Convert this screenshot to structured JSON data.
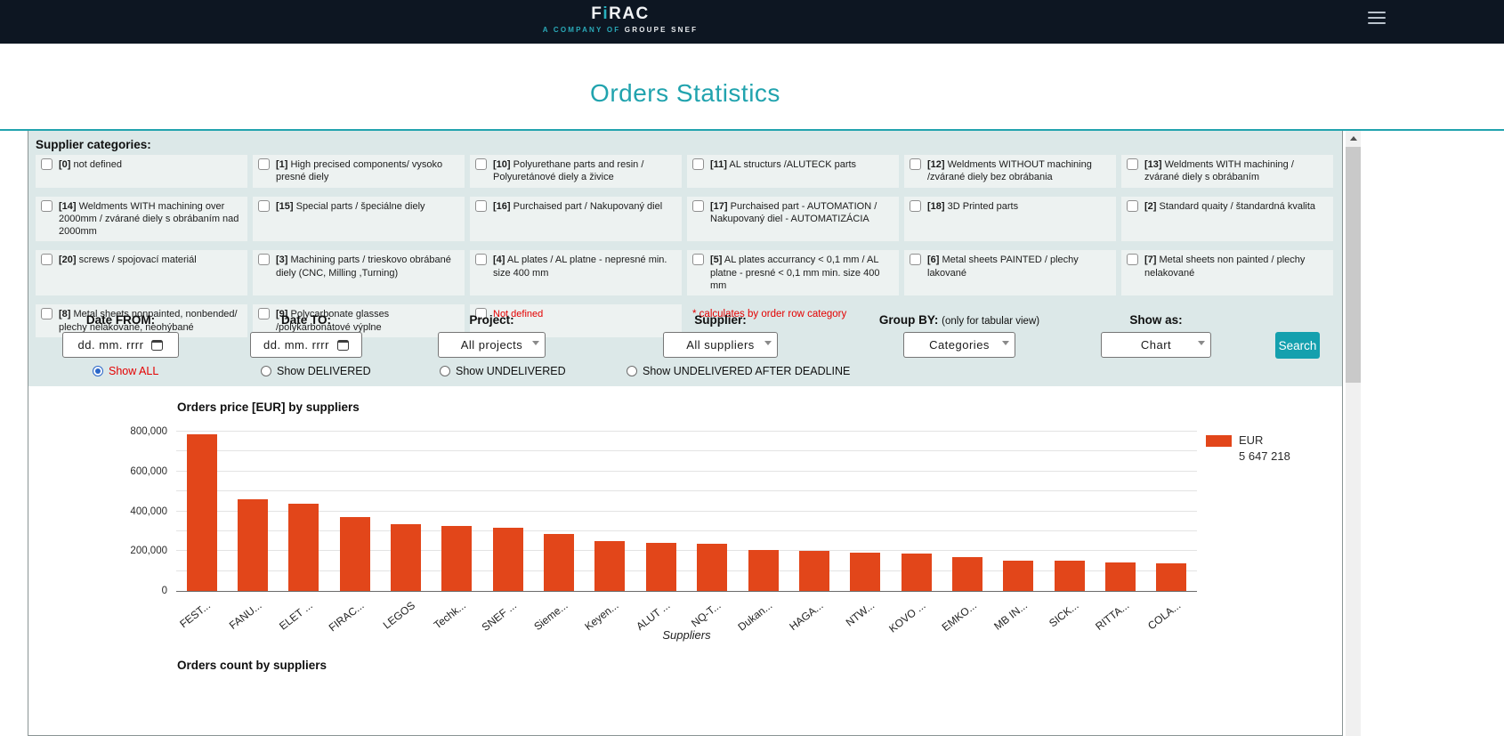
{
  "header": {
    "logo": {
      "part1": "F",
      "accent": "i",
      "part2": "RAC",
      "sub_accent": "A COMPANY OF",
      "sub_main": "GROUPE SNEF"
    }
  },
  "page_title": "Orders Statistics",
  "supplier_categories": {
    "heading": "Supplier categories:",
    "items": [
      {
        "code": "[0]",
        "label": "not defined"
      },
      {
        "code": "[1]",
        "label": "High precised components/ vysoko presné diely"
      },
      {
        "code": "[10]",
        "label": "Polyurethane parts and resin / Polyuretánové diely a živice"
      },
      {
        "code": "[11]",
        "label": "AL structurs /ALUTECK parts"
      },
      {
        "code": "[12]",
        "label": "Weldments WITHOUT machining /zvárané diely bez obrábania"
      },
      {
        "code": "[13]",
        "label": "Weldments WITH machining / zvárané diely s obrábaním"
      },
      {
        "code": "[14]",
        "label": "Weldments WITH machining over 2000mm / zvárané diely s obrábaním nad 2000mm"
      },
      {
        "code": "[15]",
        "label": "Special parts / špeciálne diely"
      },
      {
        "code": "[16]",
        "label": "Purchaised part / Nakupovaný diel"
      },
      {
        "code": "[17]",
        "label": "Purchaised part - AUTOMATION / Nakupovaný diel - AUTOMATIZÁCIA"
      },
      {
        "code": "[18]",
        "label": "3D Printed parts"
      },
      {
        "code": "[2]",
        "label": "Standard quaity / štandardná kvalita"
      },
      {
        "code": "[20]",
        "label": "screws / spojovací materiál"
      },
      {
        "code": "[3]",
        "label": "Machining parts / trieskovo obrábané diely (CNC, Milling ,Turning)"
      },
      {
        "code": "[4]",
        "label": "AL plates / AL platne - nepresné min. size 400 mm"
      },
      {
        "code": "[5]",
        "label": "AL plates accurrancy < 0,1 mm / AL platne - presné < 0,1 mm min. size 400 mm"
      },
      {
        "code": "[6]",
        "label": "Metal sheets PAINTED / plechy lakované"
      },
      {
        "code": "[7]",
        "label": "Metal sheets non painted / plechy nelakované"
      },
      {
        "code": "[8]",
        "label": "Metal sheets nonpainted, nonbended/ plechy nelakované, neohýbané"
      },
      {
        "code": "[9]",
        "label": "Polycarbonate glasses /polykarbonátové výplne"
      }
    ],
    "not_defined_label": "Not defined",
    "note": "* calculates by order row category"
  },
  "filters": {
    "date_from": {
      "label": "Date FROM:",
      "placeholder": "dd. mm. rrrr"
    },
    "date_to": {
      "label": "Date TO:",
      "placeholder": "dd. mm. rrrr"
    },
    "project": {
      "label": "Project:",
      "value": "All projects"
    },
    "supplier": {
      "label": "Supplier:",
      "value": "All suppliers"
    },
    "group_by": {
      "label": "Group BY:",
      "note": "(only for tabular view)",
      "value": "Categories"
    },
    "show_as": {
      "label": "Show as:",
      "value": "Chart"
    },
    "search_label": "Search"
  },
  "view_options": [
    {
      "label": "Show ALL",
      "selected": true
    },
    {
      "label": "Show DELIVERED",
      "selected": false
    },
    {
      "label": "Show UNDELIVERED",
      "selected": false
    },
    {
      "label": "Show UNDELIVERED AFTER DEADLINE",
      "selected": false
    }
  ],
  "chart_data": [
    {
      "type": "bar",
      "title": "Orders price [EUR] by suppliers",
      "categories": [
        "FEST...",
        "FANU...",
        "ELET ...",
        "FIRAC...",
        "LEGOS",
        "Techk...",
        "SNEF ...",
        "Sieme...",
        "Keyen...",
        "ALUT ...",
        "NQ-T...",
        "Dukan...",
        "HAGA...",
        "NTW...",
        "KOVO ...",
        "EMKO...",
        "MB IN...",
        "SICK...",
        "RITTA...",
        "COLA..."
      ],
      "values": [
        785000,
        462000,
        440000,
        372000,
        336000,
        326000,
        318000,
        288000,
        252000,
        243000,
        238000,
        208000,
        201000,
        193000,
        188000,
        168000,
        153000,
        152000,
        143000,
        138000
      ],
      "xlabel": "Suppliers",
      "ylabel": "",
      "ylim": [
        0,
        800000
      ],
      "yticks": [
        {
          "value": 0,
          "label": "0"
        },
        {
          "value": 200000,
          "label": "200,000"
        },
        {
          "value": 400000,
          "label": "400,000"
        },
        {
          "value": 600000,
          "label": "600,000"
        },
        {
          "value": 800000,
          "label": "800,000"
        }
      ],
      "minor_gridlines": [
        100000,
        300000,
        500000,
        700000
      ],
      "legend": {
        "series": "EUR",
        "total": "5 647 218",
        "position": "right"
      },
      "bar_color": "#e2461a",
      "grid": true
    },
    {
      "type": "bar",
      "title": "Orders count by suppliers"
    }
  ],
  "colors": {
    "accent_teal": "#21a3ae",
    "header_bg": "#0d1622",
    "bar_orange": "#e2461a",
    "alert_red": "#e40000",
    "search_teal": "#14a0ae"
  }
}
